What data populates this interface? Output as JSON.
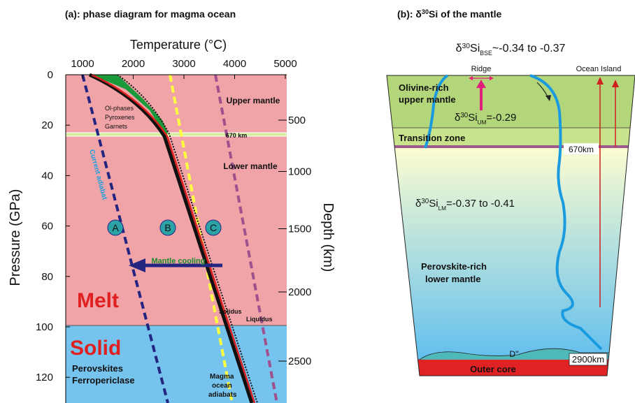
{
  "panel_a": {
    "title": "(a): phase diagram for magma ocean",
    "x_label": "Temperature (°C)",
    "y_label": "Pressure (GPa)",
    "y2_label": "Depth (km)",
    "xticks": [
      1000,
      2000,
      3000,
      4000,
      5000
    ],
    "yticks": [
      0,
      20,
      40,
      60,
      80,
      100,
      120
    ],
    "y2ticks": [
      500,
      1000,
      1500,
      2000,
      2500
    ],
    "labels": {
      "upper_mantle": "Upper mantle",
      "lower_mantle": "Lower mantle",
      "km670": "670 km",
      "phases": [
        "Ol-phases",
        "Pyroxenes",
        "Garnets"
      ],
      "current_adiabat": "Current adiabat",
      "a": "A",
      "b": "B",
      "c": "C",
      "cooling": "Mantle cooling",
      "melt": "Melt",
      "solid": "Solid",
      "solidus": "Solidus",
      "liquidus": "Liquidus",
      "minerals": [
        "Perovskites",
        "Ferropericlase"
      ],
      "magma": [
        "Magma",
        "ocean",
        "adiabats"
      ]
    }
  },
  "panel_b": {
    "title": [
      {
        "text": "(b): δ"
      },
      {
        "text": "30",
        "pos": "sup"
      },
      {
        "text": "Si of the mantle"
      }
    ],
    "bse": [
      {
        "text": "δ"
      },
      {
        "text": "30",
        "pos": "sup"
      },
      {
        "text": "Si"
      },
      {
        "text": "BSE",
        "pos": "sub"
      },
      {
        "text": "~-0.34 to -0.37"
      }
    ],
    "um": [
      {
        "text": "δ"
      },
      {
        "text": "30",
        "pos": "sup"
      },
      {
        "text": "Si"
      },
      {
        "text": "UM",
        "pos": "sub"
      },
      {
        "text": "=-0.29"
      }
    ],
    "lm": [
      {
        "text": "δ"
      },
      {
        "text": "30",
        "pos": "sup"
      },
      {
        "text": "Si"
      },
      {
        "text": "LM",
        "pos": "sub"
      },
      {
        "text": "=-0.37 to -0.41"
      }
    ],
    "ridge": "Ridge",
    "ocean_island": "Ocean Island",
    "upper": [
      "Olivine-rich",
      "upper mantle"
    ],
    "transition": "Transition zone",
    "km670": "670km",
    "lower": [
      "Perovskite-rich",
      "lower mantle"
    ],
    "d2": "D''",
    "km2900": "2900km",
    "core": "Outer core"
  }
}
